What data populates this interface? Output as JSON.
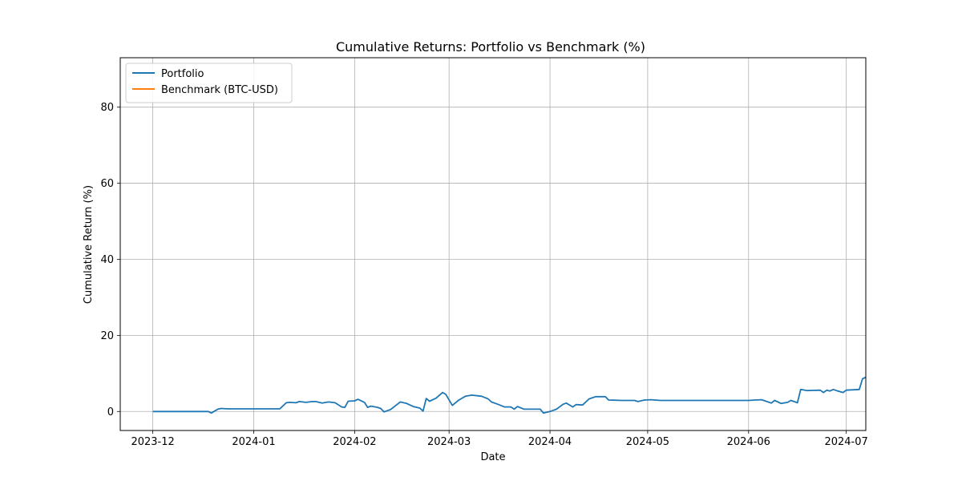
{
  "chart_data": {
    "type": "line",
    "title": "Cumulative Returns: Portfolio vs Benchmark (%)",
    "xlabel": "Date",
    "ylabel": "Cumulative Return (%)",
    "grid": true,
    "legend_position": "top-left",
    "xlim": [
      "2023-11-21",
      "2024-07-07"
    ],
    "ylim": [
      -5,
      93
    ],
    "x_ticks": [
      "2023-12-01",
      "2024-01-01",
      "2024-02-01",
      "2024-03-01",
      "2024-04-01",
      "2024-05-01",
      "2024-06-01",
      "2024-07-01"
    ],
    "x_tick_labels": [
      "2023-12",
      "2024-01",
      "2024-02",
      "2024-03",
      "2024-04",
      "2024-05",
      "2024-06",
      "2024-07"
    ],
    "y_ticks": [
      0,
      20,
      40,
      60,
      80
    ],
    "series": [
      {
        "name": "Portfolio",
        "color": "#1f77b4",
        "points": [
          [
            "2023-12-01",
            0
          ],
          [
            "2023-12-10",
            0
          ],
          [
            "2023-12-18",
            0
          ],
          [
            "2023-12-19",
            -0.4
          ],
          [
            "2023-12-21",
            0.6
          ],
          [
            "2023-12-22",
            0.8
          ],
          [
            "2023-12-24",
            0.7
          ],
          [
            "2024-01-05",
            0.7
          ],
          [
            "2024-01-09",
            0.7
          ],
          [
            "2024-01-11",
            2.3
          ],
          [
            "2024-01-12",
            2.4
          ],
          [
            "2024-01-14",
            2.3
          ],
          [
            "2024-01-15",
            2.6
          ],
          [
            "2024-01-17",
            2.4
          ],
          [
            "2024-01-19",
            2.6
          ],
          [
            "2024-01-20",
            2.6
          ],
          [
            "2024-01-22",
            2.2
          ],
          [
            "2024-01-24",
            2.5
          ],
          [
            "2024-01-26",
            2.3
          ],
          [
            "2024-01-28",
            1.2
          ],
          [
            "2024-01-29",
            1.1
          ],
          [
            "2024-01-30",
            2.7
          ],
          [
            "2024-02-01",
            2.8
          ],
          [
            "2024-02-02",
            3.2
          ],
          [
            "2024-02-04",
            2.4
          ],
          [
            "2024-02-05",
            1.1
          ],
          [
            "2024-02-06",
            1.4
          ],
          [
            "2024-02-08",
            1.1
          ],
          [
            "2024-02-09",
            0.8
          ],
          [
            "2024-02-10",
            -0.1
          ],
          [
            "2024-02-12",
            0.5
          ],
          [
            "2024-02-15",
            2.5
          ],
          [
            "2024-02-17",
            2.1
          ],
          [
            "2024-02-19",
            1.3
          ],
          [
            "2024-02-21",
            0.9
          ],
          [
            "2024-02-22",
            0.1
          ],
          [
            "2024-02-23",
            3.4
          ],
          [
            "2024-02-24",
            2.7
          ],
          [
            "2024-02-26",
            3.5
          ],
          [
            "2024-02-28",
            5.0
          ],
          [
            "2024-02-29",
            4.5
          ],
          [
            "2024-03-02",
            1.6
          ],
          [
            "2024-03-04",
            3.0
          ],
          [
            "2024-03-06",
            4.0
          ],
          [
            "2024-03-08",
            4.3
          ],
          [
            "2024-03-11",
            4.0
          ],
          [
            "2024-03-13",
            3.3
          ],
          [
            "2024-03-14",
            2.5
          ],
          [
            "2024-03-16",
            1.9
          ],
          [
            "2024-03-18",
            1.2
          ],
          [
            "2024-03-20",
            1.2
          ],
          [
            "2024-03-21",
            0.6
          ],
          [
            "2024-03-22",
            1.3
          ],
          [
            "2024-03-24",
            0.6
          ],
          [
            "2024-03-29",
            0.6
          ],
          [
            "2024-03-30",
            -0.4
          ],
          [
            "2024-04-01",
            0
          ],
          [
            "2024-04-03",
            0.6
          ],
          [
            "2024-04-05",
            1.9
          ],
          [
            "2024-04-06",
            2.2
          ],
          [
            "2024-04-08",
            1.2
          ],
          [
            "2024-04-09",
            1.8
          ],
          [
            "2024-04-11",
            1.7
          ],
          [
            "2024-04-13",
            3.3
          ],
          [
            "2024-04-15",
            3.9
          ],
          [
            "2024-04-18",
            3.9
          ],
          [
            "2024-04-19",
            3.0
          ],
          [
            "2024-04-23",
            2.9
          ],
          [
            "2024-04-27",
            2.9
          ],
          [
            "2024-04-28",
            2.6
          ],
          [
            "2024-04-30",
            3.0
          ],
          [
            "2024-05-02",
            3.1
          ],
          [
            "2024-05-05",
            2.9
          ],
          [
            "2024-05-31",
            2.9
          ],
          [
            "2024-06-01",
            2.9
          ],
          [
            "2024-06-03",
            3.0
          ],
          [
            "2024-06-05",
            3.1
          ],
          [
            "2024-06-06",
            2.8
          ],
          [
            "2024-06-08",
            2.2
          ],
          [
            "2024-06-09",
            2.9
          ],
          [
            "2024-06-11",
            2.1
          ],
          [
            "2024-06-13",
            2.4
          ],
          [
            "2024-06-14",
            2.9
          ],
          [
            "2024-06-16",
            2.3
          ],
          [
            "2024-06-17",
            5.8
          ],
          [
            "2024-06-19",
            5.5
          ],
          [
            "2024-06-23",
            5.6
          ],
          [
            "2024-06-24",
            5.0
          ],
          [
            "2024-06-25",
            5.6
          ],
          [
            "2024-06-26",
            5.4
          ],
          [
            "2024-06-27",
            5.8
          ],
          [
            "2024-06-28",
            5.5
          ],
          [
            "2024-06-30",
            5.0
          ],
          [
            "2024-07-01",
            5.6
          ],
          [
            "2024-07-05",
            5.8
          ],
          [
            "2024-07-06",
            8.6
          ],
          [
            "2024-07-07",
            9.0
          ]
        ]
      },
      {
        "name": "Benchmark (BTC-USD)",
        "color": "#ff7f0e",
        "points": []
      }
    ]
  }
}
